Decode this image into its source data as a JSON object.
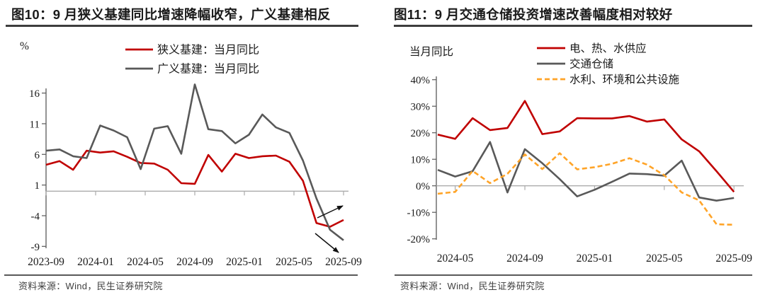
{
  "colors": {
    "red": "#C00000",
    "gray": "#595959",
    "orange": "#FFA428",
    "zero_axis": "#ABABAB",
    "y_axis": "#595959",
    "tick_text": "#1a1a1a",
    "title_text": "#1a1a1a",
    "rule": "#3d3d3d",
    "source_text": "#404040",
    "arrow": "#111111"
  },
  "figures": [
    {
      "title": "图10：9 月狭义基建同比增速降幅收窄，广义基建相反",
      "unit_label": "%",
      "source": "资料来源：Wind，民生证券研究院"
    },
    {
      "title": "图11：9 月交通仓储投资增速改善幅度相对较好",
      "unit_label": "当月同比",
      "source": "资料来源：Wind，民生证券研究院"
    }
  ],
  "chart_data": [
    {
      "type": "line",
      "title": "图10：9 月狭义基建同比增速降幅收窄，广义基建相反",
      "xlabel": "",
      "ylabel": "%",
      "grid": false,
      "legend_position": "top-center",
      "ylim": [
        -9,
        16
      ],
      "yticks": [
        16,
        11,
        6,
        1,
        -4,
        -9
      ],
      "ytick_suffix": "",
      "xtick_labels": [
        "2023-09",
        "2024-01",
        "2024-05",
        "2024-09",
        "2025-01",
        "2025-05",
        "2025-09"
      ],
      "x": [
        "2023-09",
        "2023-10",
        "2023-11",
        "2023-12",
        "2024-02",
        "2024-03",
        "2024-04",
        "2024-05",
        "2024-06",
        "2024-07",
        "2024-08",
        "2024-09",
        "2024-10",
        "2024-11",
        "2024-12",
        "2025-02",
        "2025-03",
        "2025-04",
        "2025-05",
        "2025-06",
        "2025-07",
        "2025-08",
        "2025-09"
      ],
      "series": [
        {
          "name": "狭义基建：当月同比",
          "color": "#C00000",
          "dash": null,
          "values": [
            4.3,
            4.9,
            3.5,
            6.6,
            6.3,
            6.5,
            5.6,
            4.6,
            4.5,
            3.5,
            1.3,
            1.2,
            5.9,
            3.2,
            6.1,
            5.4,
            5.7,
            5.8,
            4.8,
            1.7,
            -5.2,
            -5.8,
            -4.7
          ]
        },
        {
          "name": "广义基建：当月同比",
          "color": "#595959",
          "dash": null,
          "values": [
            6.6,
            6.8,
            5.7,
            5.4,
            10.7,
            9.9,
            8.8,
            3.6,
            10.2,
            10.6,
            6.1,
            17.4,
            10.1,
            9.8,
            7.8,
            9.2,
            12.5,
            10.4,
            9.5,
            5.0,
            -1.2,
            -6.3,
            -8.0
          ]
        }
      ],
      "annotations": [
        "black up-right arrow near end of 狭义基建 line (decline narrowing)",
        "black down-right arrow near end of 广义基建 line (decline widening)"
      ]
    },
    {
      "type": "line",
      "title": "图11：9 月交通仓储投资增速改善幅度相对较好",
      "xlabel": "",
      "ylabel": "当月同比",
      "grid": false,
      "legend_position": "top-center",
      "ylim": [
        -20,
        40
      ],
      "yticks": [
        40,
        30,
        20,
        10,
        0,
        -10,
        -20
      ],
      "ytick_suffix": "%",
      "xtick_labels": [
        "2024-05",
        "2024-09",
        "2025-01",
        "2025-05",
        "2025-09"
      ],
      "x": [
        "2024-04",
        "2024-05",
        "2024-06",
        "2024-07",
        "2024-08",
        "2024-09",
        "2024-10",
        "2024-11",
        "2024-12",
        "2025-01",
        "2025-02",
        "2025-03",
        "2025-04",
        "2025-05",
        "2025-06",
        "2025-07",
        "2025-08",
        "2025-09"
      ],
      "series": [
        {
          "name": "电、热、水供应",
          "color": "#C00000",
          "dash": null,
          "values": [
            19.3,
            17.7,
            25.5,
            21.0,
            21.8,
            32.0,
            19.5,
            20.5,
            25.5,
            25.4,
            25.4,
            26.3,
            24.2,
            25.0,
            17.5,
            13.0,
            5.5,
            -2.3
          ]
        },
        {
          "name": "交通仓储",
          "color": "#595959",
          "dash": null,
          "values": [
            6.0,
            3.5,
            5.5,
            16.5,
            -2.5,
            13.8,
            8.5,
            2.5,
            -4.0,
            -1.5,
            1.5,
            4.6,
            4.4,
            3.8,
            9.5,
            -4.4,
            -5.6,
            -4.6
          ]
        },
        {
          "name": "水利、环境和公共设施",
          "color": "#FFA428",
          "dash": "7 4",
          "values": [
            -3.0,
            -2.3,
            5.6,
            1.0,
            4.5,
            11.8,
            6.3,
            12.3,
            6.2,
            7.0,
            8.3,
            10.4,
            8.0,
            4.0,
            -2.5,
            -5.5,
            -14.5,
            -14.7
          ]
        }
      ]
    }
  ]
}
